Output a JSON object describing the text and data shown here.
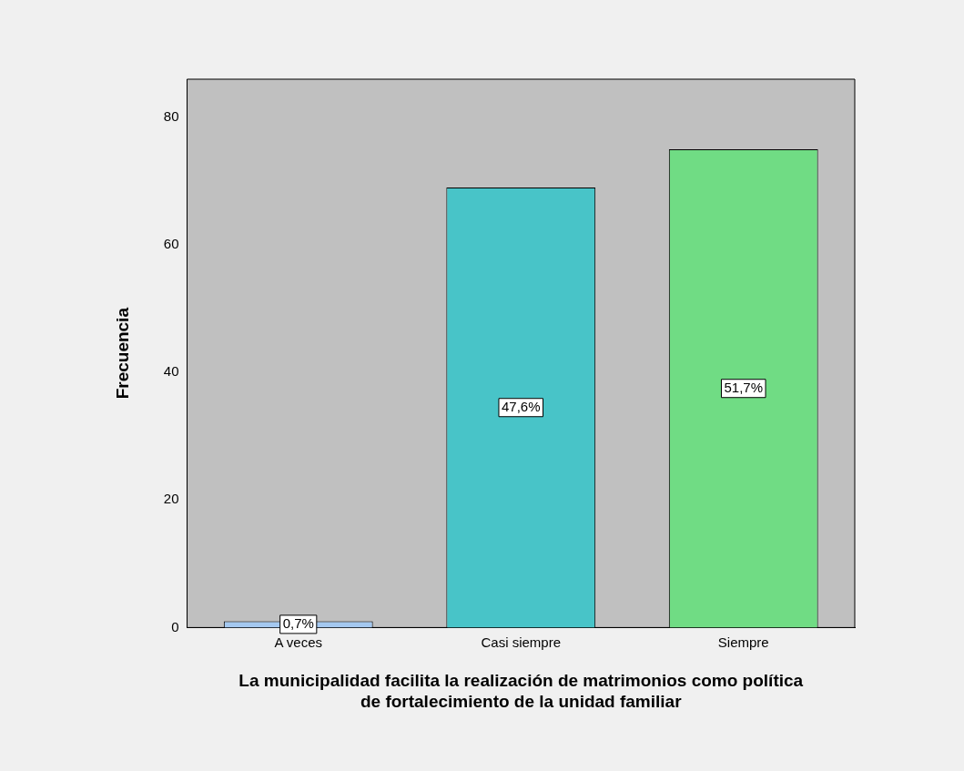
{
  "chart_data": {
    "type": "bar",
    "xlabel": "La municipalidad facilita la realización de matrimonios como política de fortalecimiento de la unidad familiar",
    "ylabel": "Frecuencia",
    "categories": [
      "A veces",
      "Casi siempre",
      "Siempre"
    ],
    "values": [
      1,
      69,
      75
    ],
    "colors": [
      "#a4c8f0",
      "#48c4c8",
      "#70dc84"
    ],
    "annotations": [
      "0,7%",
      "47,6%",
      "51,7%"
    ],
    "ylim": [
      0,
      86
    ],
    "yticks": [
      0,
      20,
      40,
      60,
      80
    ],
    "grid": false,
    "legend": false
  }
}
